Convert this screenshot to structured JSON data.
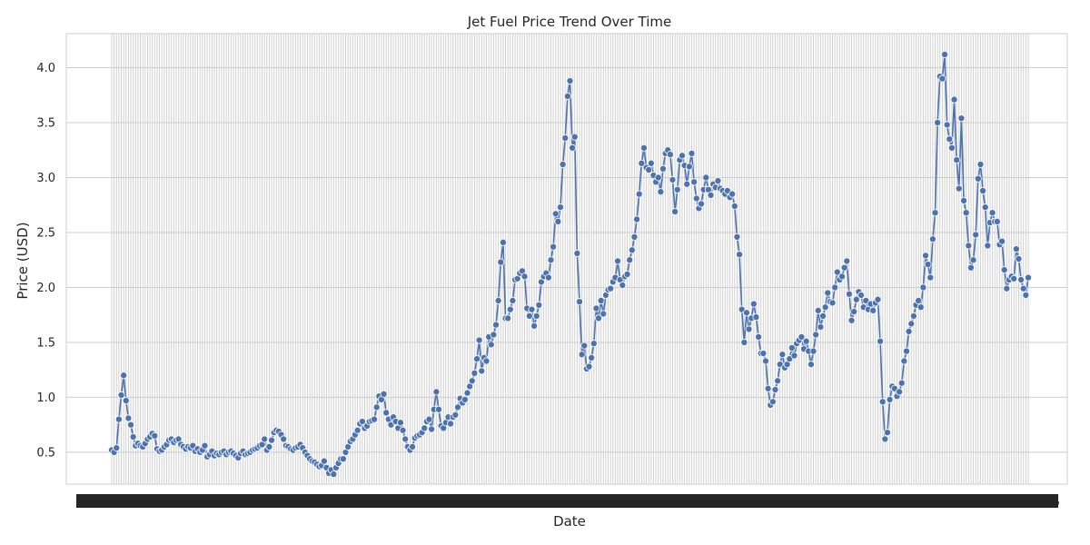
{
  "chart_data": {
    "type": "line",
    "title": "Jet Fuel Price Trend Over Time",
    "xlabel": "Date",
    "ylabel": "Price (USD)",
    "ylim": [
      0.21,
      4.31
    ],
    "yticks": [
      "0.5",
      "1.0",
      "1.5",
      "2.0",
      "2.5",
      "3.0",
      "3.5",
      "4.0"
    ],
    "grid": true,
    "marker": "circle",
    "color": "#4c72b0",
    "series": [
      {
        "values": [
          0.52,
          0.5,
          0.54,
          0.8,
          1.02,
          1.2,
          0.97,
          0.81,
          0.75,
          0.64,
          0.56,
          0.58,
          0.56,
          0.55,
          0.58,
          0.62,
          0.64,
          0.67,
          0.65,
          0.53,
          0.51,
          0.52,
          0.55,
          0.57,
          0.61,
          0.62,
          0.59,
          0.61,
          0.62,
          0.57,
          0.55,
          0.53,
          0.55,
          0.54,
          0.56,
          0.51,
          0.53,
          0.5,
          0.52,
          0.56,
          0.46,
          0.48,
          0.51,
          0.47,
          0.49,
          0.48,
          0.5,
          0.51,
          0.48,
          0.5,
          0.51,
          0.49,
          0.47,
          0.45,
          0.49,
          0.51,
          0.48,
          0.49,
          0.5,
          0.52,
          0.53,
          0.54,
          0.56,
          0.57,
          0.62,
          0.52,
          0.55,
          0.61,
          0.68,
          0.7,
          0.69,
          0.66,
          0.62,
          0.56,
          0.55,
          0.53,
          0.52,
          0.54,
          0.55,
          0.57,
          0.54,
          0.5,
          0.47,
          0.44,
          0.42,
          0.41,
          0.39,
          0.37,
          0.38,
          0.42,
          0.36,
          0.31,
          0.34,
          0.3,
          0.36,
          0.4,
          0.44,
          0.44,
          0.5,
          0.55,
          0.6,
          0.62,
          0.66,
          0.7,
          0.76,
          0.78,
          0.72,
          0.74,
          0.78,
          0.79,
          0.8,
          0.91,
          1.01,
          0.98,
          1.03,
          0.86,
          0.8,
          0.75,
          0.82,
          0.78,
          0.72,
          0.77,
          0.7,
          0.62,
          0.55,
          0.52,
          0.55,
          0.63,
          0.65,
          0.66,
          0.68,
          0.72,
          0.78,
          0.8,
          0.71,
          0.89,
          1.05,
          0.89,
          0.74,
          0.72,
          0.77,
          0.82,
          0.76,
          0.82,
          0.84,
          0.91,
          0.99,
          0.95,
          0.98,
          1.04,
          1.1,
          1.15,
          1.22,
          1.35,
          1.52,
          1.24,
          1.36,
          1.33,
          1.55,
          1.48,
          1.57,
          1.66,
          1.88,
          2.23,
          2.41,
          1.72,
          1.72,
          1.8,
          1.88,
          2.07,
          2.08,
          2.13,
          2.15,
          2.1,
          1.81,
          1.74,
          1.8,
          1.65,
          1.74,
          1.84,
          2.05,
          2.1,
          2.13,
          2.09,
          2.25,
          2.37,
          2.67,
          2.6,
          2.73,
          3.12,
          3.36,
          3.74,
          3.88,
          3.27,
          3.37,
          2.31,
          1.87,
          1.39,
          1.47,
          1.26,
          1.28,
          1.36,
          1.49,
          1.81,
          1.72,
          1.88,
          1.76,
          1.93,
          1.98,
          1.99,
          2.05,
          2.09,
          2.24,
          2.07,
          2.02,
          2.1,
          2.12,
          2.25,
          2.34,
          2.46,
          2.62,
          2.85,
          3.13,
          3.27,
          3.09,
          3.07,
          3.13,
          3.02,
          2.96,
          3.0,
          2.87,
          3.08,
          3.22,
          3.25,
          3.21,
          2.98,
          2.69,
          2.89,
          3.16,
          3.2,
          3.11,
          2.94,
          3.1,
          3.22,
          2.96,
          2.81,
          2.72,
          2.76,
          2.89,
          3.0,
          2.89,
          2.84,
          2.94,
          2.91,
          2.97,
          2.9,
          2.88,
          2.85,
          2.88,
          2.82,
          2.85,
          2.74,
          2.46,
          2.3,
          1.8,
          1.5,
          1.77,
          1.62,
          1.72,
          1.85,
          1.73,
          1.55,
          1.4,
          1.4,
          1.33,
          1.08,
          0.93,
          0.96,
          1.07,
          1.15,
          1.3,
          1.39,
          1.27,
          1.3,
          1.35,
          1.45,
          1.38,
          1.49,
          1.52,
          1.55,
          1.44,
          1.51,
          1.42,
          1.3,
          1.42,
          1.57,
          1.79,
          1.64,
          1.74,
          1.82,
          1.95,
          1.87,
          1.86,
          2.0,
          2.14,
          2.07,
          2.1,
          2.18,
          2.24,
          1.94,
          1.7,
          1.78,
          1.89,
          1.96,
          1.93,
          1.82,
          1.88,
          1.8,
          1.85,
          1.79,
          1.86,
          1.89,
          1.51,
          0.96,
          0.62,
          0.68,
          0.98,
          1.1,
          1.08,
          1.01,
          1.05,
          1.13,
          1.33,
          1.42,
          1.6,
          1.67,
          1.74,
          1.84,
          1.88,
          1.82,
          2.0,
          2.29,
          2.21,
          2.09,
          2.44,
          2.68,
          3.5,
          3.92,
          3.9,
          4.12,
          3.48,
          3.35,
          3.27,
          3.71,
          3.16,
          2.9,
          3.54,
          2.79,
          2.68,
          2.38,
          2.18,
          2.25,
          2.48,
          2.99,
          3.12,
          2.88,
          2.73,
          2.38,
          2.59,
          2.68,
          2.6,
          2.6,
          2.39,
          2.42,
          2.16,
          1.99,
          2.07,
          2.1,
          2.08,
          2.35,
          2.26,
          2.07,
          1.99,
          1.93,
          2.09
        ]
      }
    ],
    "xtick_labels": [
      "15",
      "15"
    ]
  }
}
